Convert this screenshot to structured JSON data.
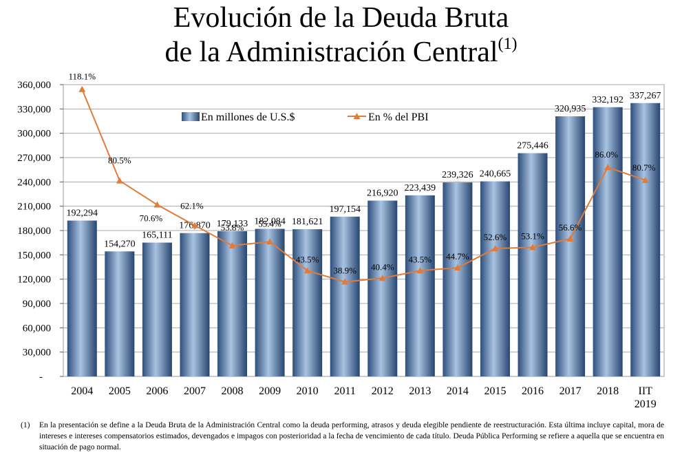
{
  "header": {
    "title_line1": "Evolución de la Deuda Bruta",
    "title_line2": "de la Administración Central",
    "title_note_mark": "(1)"
  },
  "chart_data": {
    "type": "bar",
    "title": "Evolución de la Deuda Bruta de la Administración Central(1)",
    "categories": [
      "2004",
      "2005",
      "2006",
      "2007",
      "2008",
      "2009",
      "2010",
      "2011",
      "2012",
      "2013",
      "2014",
      "2015",
      "2016",
      "2017",
      "2018",
      "IIT 2019"
    ],
    "series": [
      {
        "name": "En millones de U.S.$",
        "type": "bar",
        "values": [
          192294,
          154270,
          165111,
          176870,
          179133,
          182084,
          181621,
          197154,
          216920,
          223439,
          239326,
          240665,
          275446,
          320935,
          332192,
          337267
        ],
        "labels": [
          "192,294",
          "154,270",
          "165,111",
          "176,870",
          "179,133",
          "182,084",
          "181,621",
          "197,154",
          "216,920",
          "223,439",
          "239,326",
          "240,665",
          "275,446",
          "320,935",
          "332,192",
          "337,267"
        ],
        "color": "#4a74a8"
      },
      {
        "name": "En % del PBI",
        "type": "line",
        "values": [
          118.1,
          80.5,
          70.6,
          62.1,
          53.8,
          55.4,
          43.5,
          38.9,
          40.4,
          43.5,
          44.7,
          52.6,
          53.1,
          56.6,
          86.0,
          80.7
        ],
        "labels": [
          "118.1%",
          "80.5%",
          "70.6%",
          "62.1%",
          "53.8%",
          "55.4%",
          "43.5%",
          "38.9%",
          "40.4%",
          "43.5%",
          "44.7%",
          "52.6%",
          "53.1%",
          "56.6%",
          "86.0%",
          "80.7%"
        ],
        "color": "#e07b39"
      }
    ],
    "y_ticks": [
      "-",
      "30,000",
      "60,000",
      "90,000",
      "120,000",
      "150,000",
      "180,000",
      "210,000",
      "240,000",
      "270,000",
      "300,000",
      "330,000",
      "360,000"
    ],
    "ylim": [
      0,
      360000
    ],
    "y2lim": [
      0,
      120
    ],
    "grid": true,
    "legend_placement": "top"
  },
  "footnote": {
    "number": "(1)",
    "text": "En la presentación se define a la Deuda Bruta de la Administración Central como la deuda performing, atrasos y deuda elegible pendiente de reestructuración. Esta última incluye capital, mora de intereses e intereses compensatorios estimados, devengados e impagos con posterioridad a la fecha de vencimiento de cada título. Deuda Pública Performing se refiere a aquella que se encuentra en situación de pago normal."
  }
}
